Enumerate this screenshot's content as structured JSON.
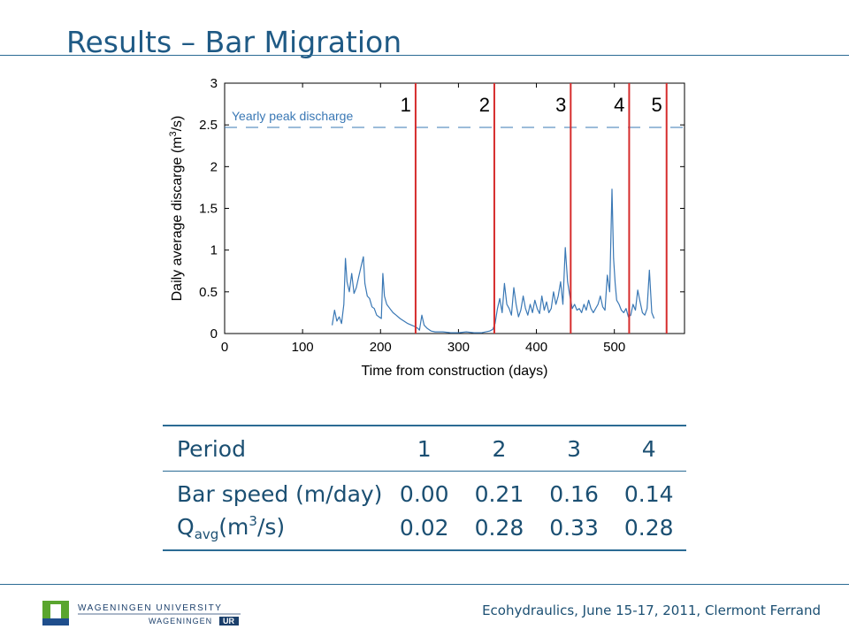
{
  "slide": {
    "title": "Results – Bar Migration",
    "footer": "Ecohydraulics, June 15-17, 2011, Clermont Ferrand",
    "logo_top": "WAGENINGEN UNIVERSITY",
    "logo_bottom_a": "WAGENINGEN",
    "logo_bottom_b": "UR"
  },
  "chart_data": {
    "type": "line",
    "title": "",
    "xlabel": "Time from construction (days)",
    "ylabel_main": "Daily average discarge (m",
    "ylabel_sup": "3",
    "ylabel_end": "/s)",
    "xlim": [
      0,
      590
    ],
    "ylim": [
      0,
      3
    ],
    "xticks": [
      0,
      100,
      200,
      300,
      400,
      500
    ],
    "yticks": [
      0,
      0.5,
      1,
      1.5,
      2,
      2.5,
      3
    ],
    "ytick_labels": [
      "0",
      "0.5",
      "1",
      "1.5",
      "2",
      "2.5",
      "3"
    ],
    "grid": false,
    "line_color": "#3a78b5",
    "reference_line": {
      "label": "Yearly peak discharge",
      "y": 2.47,
      "color": "#3a78b5"
    },
    "period_markers": {
      "color": "#d62c2c",
      "x": [
        245,
        346,
        444,
        519,
        567
      ],
      "labels": [
        "1",
        "2",
        "3",
        "4",
        "5"
      ]
    },
    "series": [
      {
        "x": [
          138,
          141,
          144,
          147,
          150,
          153,
          155,
          157,
          160,
          163,
          166,
          169,
          172,
          175,
          178,
          180,
          183,
          186,
          189,
          192,
          195,
          198,
          201,
          203,
          205,
          208,
          212,
          216,
          220,
          225,
          230,
          235,
          240,
          245,
          248,
          250,
          253,
          256,
          260,
          265,
          270,
          280,
          290,
          300,
          310,
          320,
          330,
          335,
          340,
          344,
          347,
          350,
          353,
          356,
          359,
          362,
          365,
          368,
          371,
          374,
          377,
          380,
          383,
          386,
          389,
          392,
          395,
          398,
          401,
          404,
          407,
          410,
          413,
          416,
          419,
          422,
          425,
          428,
          431,
          434,
          437,
          440,
          443,
          446,
          449,
          452,
          455,
          458,
          461,
          464,
          467,
          470,
          473,
          476,
          479,
          482,
          485,
          488,
          491,
          494,
          497,
          499,
          501,
          503,
          506,
          509,
          512,
          515,
          518,
          521,
          524,
          527,
          530,
          533,
          536,
          539,
          542,
          545,
          548,
          551
        ],
        "values": [
          0.1,
          0.28,
          0.15,
          0.2,
          0.12,
          0.35,
          0.9,
          0.62,
          0.5,
          0.72,
          0.48,
          0.55,
          0.68,
          0.8,
          0.92,
          0.6,
          0.45,
          0.42,
          0.32,
          0.3,
          0.22,
          0.2,
          0.18,
          0.72,
          0.45,
          0.35,
          0.3,
          0.25,
          0.22,
          0.18,
          0.15,
          0.12,
          0.1,
          0.08,
          0.06,
          0.04,
          0.22,
          0.1,
          0.06,
          0.03,
          0.02,
          0.02,
          0.01,
          0.01,
          0.02,
          0.01,
          0.01,
          0.02,
          0.03,
          0.05,
          0.12,
          0.3,
          0.42,
          0.25,
          0.6,
          0.35,
          0.3,
          0.22,
          0.55,
          0.35,
          0.2,
          0.28,
          0.45,
          0.3,
          0.22,
          0.35,
          0.25,
          0.4,
          0.3,
          0.24,
          0.45,
          0.28,
          0.38,
          0.25,
          0.3,
          0.5,
          0.35,
          0.45,
          0.62,
          0.35,
          1.03,
          0.62,
          0.45,
          0.3,
          0.35,
          0.28,
          0.3,
          0.25,
          0.35,
          0.28,
          0.4,
          0.3,
          0.25,
          0.3,
          0.35,
          0.45,
          0.32,
          0.28,
          0.7,
          0.5,
          1.73,
          0.9,
          0.6,
          0.4,
          0.35,
          0.28,
          0.25,
          0.3,
          0.2,
          0.22,
          0.35,
          0.28,
          0.52,
          0.38,
          0.25,
          0.22,
          0.3,
          0.76,
          0.25,
          0.18
        ]
      }
    ]
  },
  "table": {
    "header": {
      "label": "Period",
      "cols": [
        "1",
        "2",
        "3",
        "4"
      ]
    },
    "rows": [
      {
        "label": "Bar speed (m/day)",
        "values": [
          "0.00",
          "0.21",
          "0.16",
          "0.14"
        ]
      },
      {
        "label_q": "Q",
        "label_sub": "avg",
        "label_open": "(m",
        "label_sup": "3",
        "label_close": "/s)",
        "values": [
          "0.02",
          "0.28",
          "0.33",
          "0.28"
        ]
      }
    ]
  }
}
